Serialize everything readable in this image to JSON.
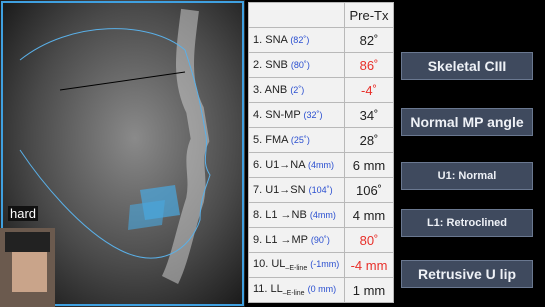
{
  "image_label": "hard",
  "table": {
    "header": "Pre-Tx",
    "rows": [
      {
        "label": "1. SNA",
        "norm": "(82˚)",
        "value": "82˚",
        "color": "#222222"
      },
      {
        "label": "2. SNB",
        "norm": "(80˚)",
        "value": "86˚",
        "color": "#e8302a"
      },
      {
        "label": "3. ANB",
        "norm": "(2˚)",
        "value": "-4˚",
        "color": "#e8302a"
      },
      {
        "label": "4. SN-MP",
        "norm": "(32˚)",
        "value": "34˚",
        "color": "#222222"
      },
      {
        "label": "5. FMA",
        "norm": "(25˚)",
        "value": "28˚",
        "color": "#222222"
      },
      {
        "label": "6. U1→NA",
        "norm": "(4mm)",
        "value": "6 mm",
        "color": "#222222"
      },
      {
        "label": "7. U1→SN",
        "norm": "(104˚)",
        "value": "106˚",
        "color": "#222222"
      },
      {
        "label": "8. L1 →NB",
        "norm": "(4mm)",
        "value": "4 mm",
        "color": "#222222"
      },
      {
        "label": "9. L1 →MP",
        "norm": "(90˚)",
        "value": "80˚",
        "color": "#e8302a"
      },
      {
        "label": "10. UL",
        "label_sub": "–E-line",
        "norm": "(-1mm)",
        "value": "-4 mm",
        "color": "#e8302a"
      },
      {
        "label": "11. LL",
        "label_sub": "–E-line",
        "norm": "(0 mm)",
        "value": "1 mm",
        "color": "#222222"
      }
    ]
  },
  "badges": [
    "Skeletal CIII",
    "Normal MP angle",
    "U1: Normal",
    "L1: Retroclined",
    "Retrusive U lip"
  ]
}
